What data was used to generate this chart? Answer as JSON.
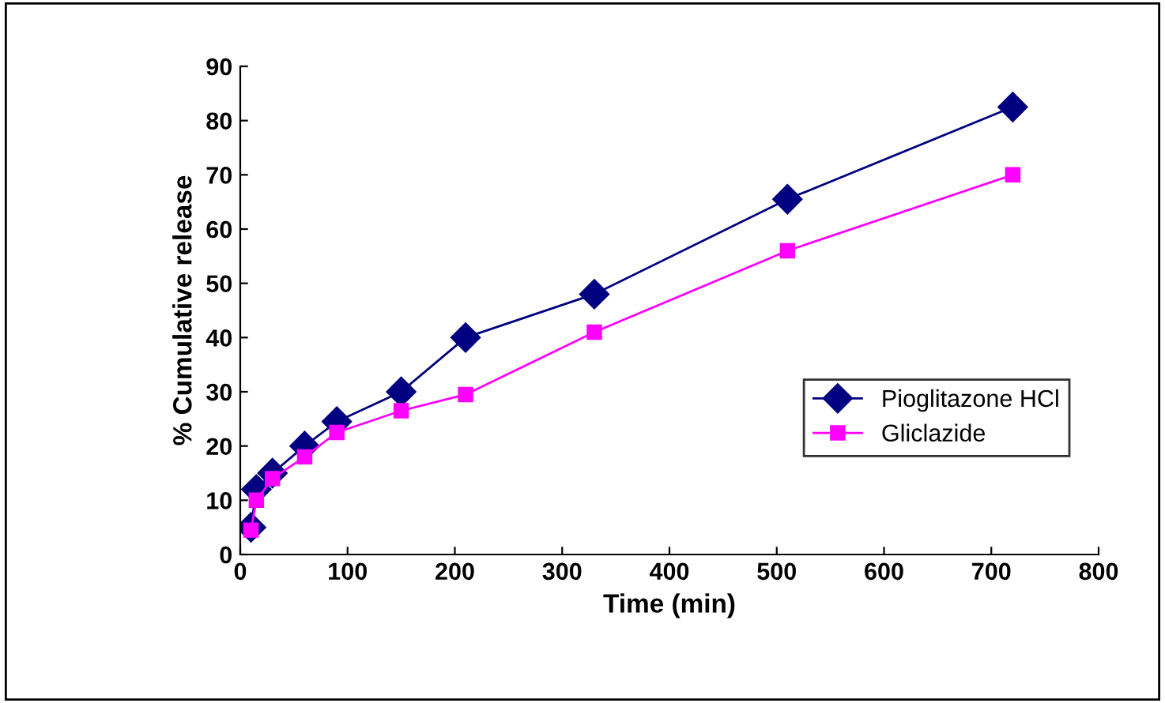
{
  "chart_data": {
    "type": "line",
    "xlabel": "Time (min)",
    "ylabel": "% Cumulative release",
    "x": [
      10,
      15,
      30,
      60,
      90,
      150,
      210,
      330,
      510,
      720
    ],
    "series": [
      {
        "name": "Pioglitazone HCl",
        "color": "#000080",
        "marker": "diamond",
        "values": [
          5,
          12,
          15,
          20,
          24.5,
          30,
          40,
          48,
          65.5,
          82.5
        ]
      },
      {
        "name": "Gliclazide",
        "color": "#ff00ff",
        "marker": "square",
        "values": [
          4.5,
          10,
          14,
          18,
          22.5,
          26.5,
          29.5,
          41,
          56,
          70
        ]
      }
    ],
    "xlim": [
      0,
      800
    ],
    "xticks": [
      0,
      100,
      200,
      300,
      400,
      500,
      600,
      700,
      800
    ],
    "ylim": [
      0,
      90
    ],
    "yticks": [
      0,
      10,
      20,
      30,
      40,
      50,
      60,
      70,
      80,
      90
    ],
    "grid": false,
    "legend": "right",
    "line_style": "solid"
  }
}
